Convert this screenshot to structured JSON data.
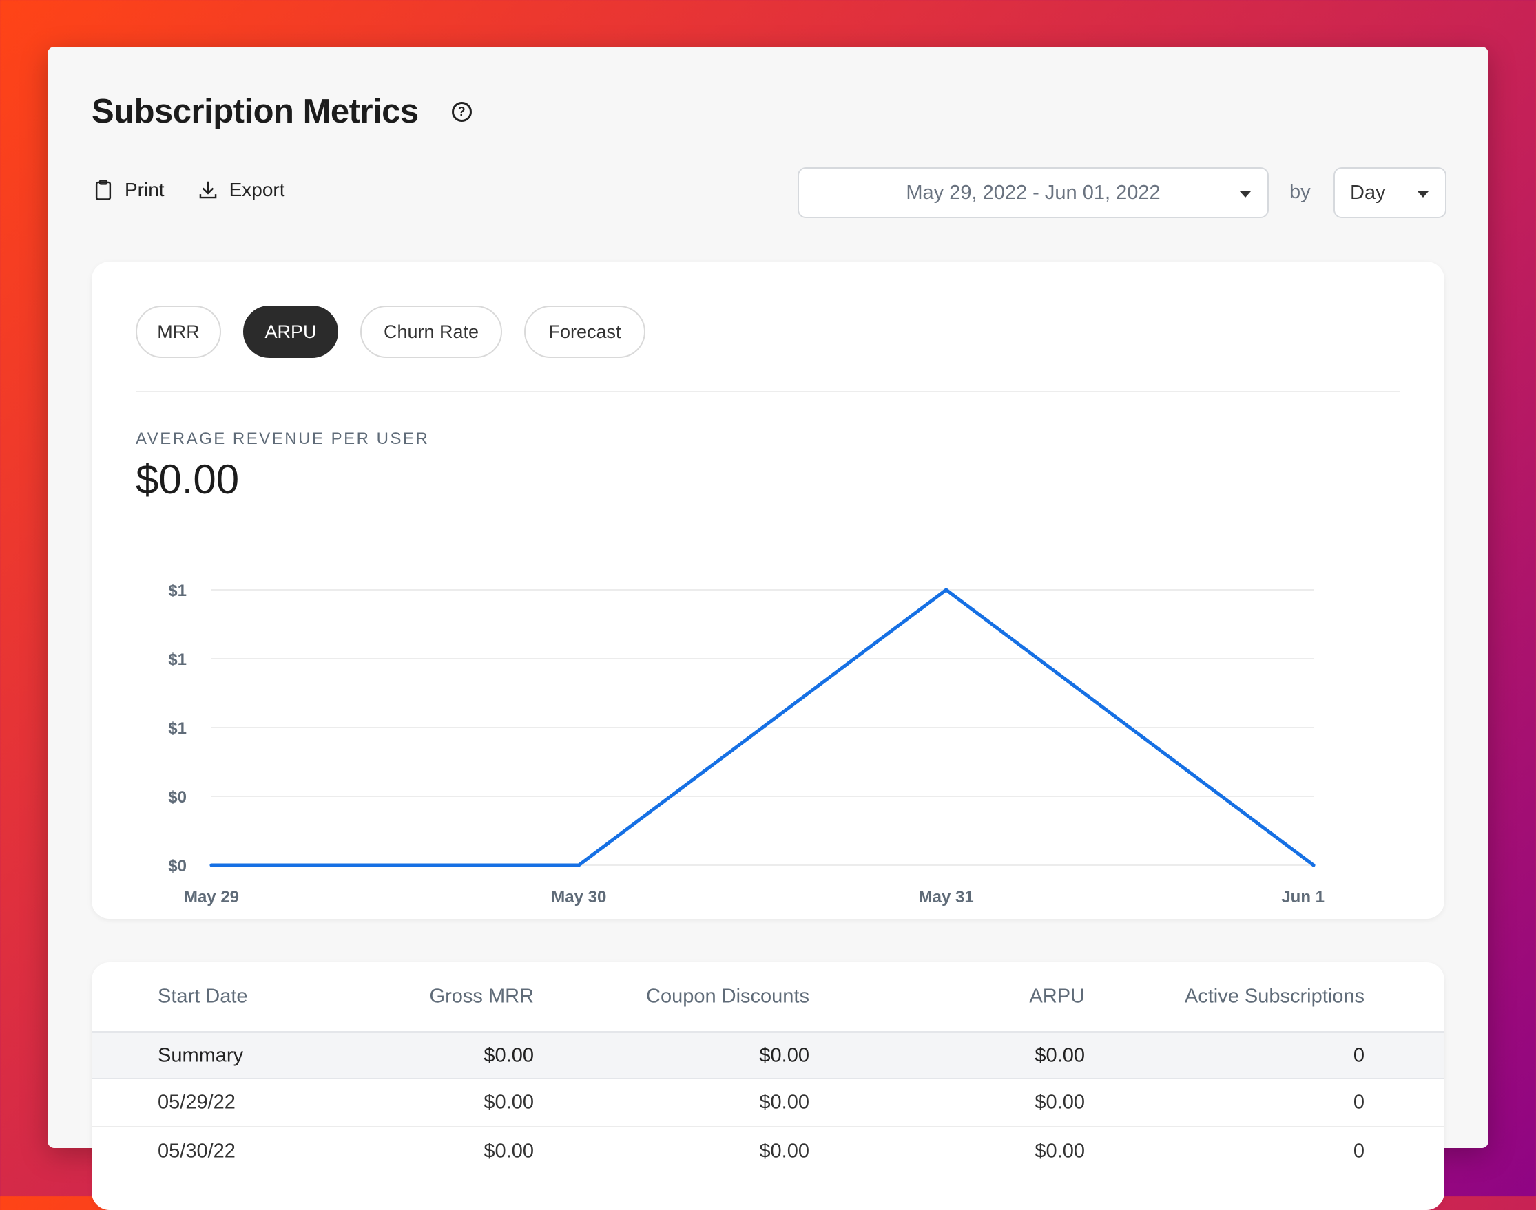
{
  "page": {
    "title": "Subscription Metrics"
  },
  "toolbar": {
    "print_label": "Print",
    "export_label": "Export"
  },
  "filters": {
    "date_range": "May 29, 2022 - Jun 01, 2022",
    "by_label": "by",
    "interval": "Day"
  },
  "tabs": [
    {
      "label": "MRR",
      "active": false
    },
    {
      "label": "ARPU",
      "active": true
    },
    {
      "label": "Churn Rate",
      "active": false
    },
    {
      "label": "Forecast",
      "active": false
    }
  ],
  "metric": {
    "label": "AVERAGE REVENUE PER USER",
    "value": "$0.00"
  },
  "chart_data": {
    "type": "line",
    "x": [
      "May 29",
      "May 30",
      "May 31",
      "Jun 1"
    ],
    "series": [
      {
        "values": [
          0,
          0,
          1,
          0
        ]
      }
    ],
    "y_tick_labels": [
      "$1",
      "$1",
      "$1",
      "$0",
      "$0"
    ],
    "ylim": [
      0,
      1
    ],
    "color": "#1670e4",
    "grid": true
  },
  "table": {
    "headers": [
      "Start Date",
      "Gross MRR",
      "Coupon Discounts",
      "ARPU",
      "Active Subscriptions"
    ],
    "summary": [
      "Summary",
      "$0.00",
      "$0.00",
      "$0.00",
      "0"
    ],
    "rows": [
      [
        "05/29/22",
        "$0.00",
        "$0.00",
        "$0.00",
        "0"
      ],
      [
        "05/30/22",
        "$0.00",
        "$0.00",
        "$0.00",
        "0"
      ]
    ]
  }
}
